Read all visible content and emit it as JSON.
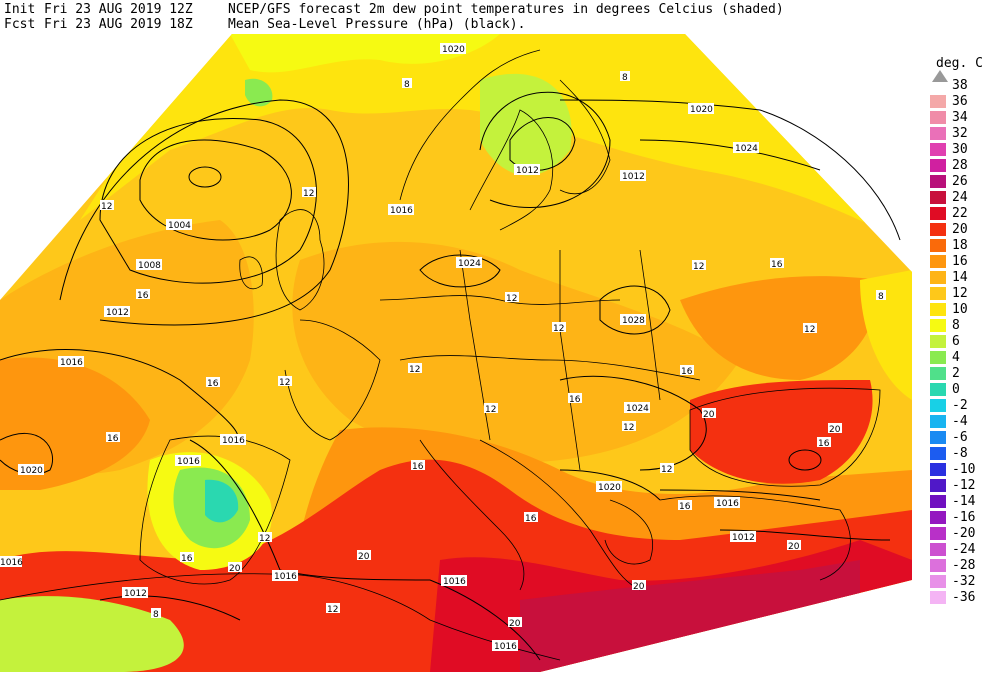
{
  "header": {
    "init_label": "Init",
    "init_time": "Fri 23 AUG 2019 12Z",
    "fcst_label": "Fcst",
    "fcst_time": "Fri 23 AUG 2019 18Z",
    "product_line1": "NCEP/GFS forecast 2m dew point temperatures in degrees Celcius (shaded)",
    "product_line2": "Mean Sea-Level Pressure (hPa) (black)."
  },
  "legend": {
    "unit": "deg. C",
    "colors": {
      "38": "#a0a0a0",
      "36": "#f4a8a8",
      "34": "#f08ca8",
      "32": "#ea70b8",
      "30": "#e040b0",
      "28": "#d020a0",
      "26": "#b8107a",
      "24": "#c8103c",
      "22": "#e00c24",
      "20": "#f43010",
      "18": "#fa6a0a",
      "16": "#fe960e",
      "14": "#feb416",
      "12": "#fec81a",
      "10": "#fee40e",
      "8": "#f6fa12",
      "6": "#c4f23c",
      "4": "#8aea50",
      "2": "#50e08a",
      "0": "#2ad8b0",
      "-2": "#18d0e6",
      "-4": "#18b4f0",
      "-6": "#1a8af2",
      "-8": "#1c5cf0",
      "-10": "#2a30e0",
      "-12": "#5018c8",
      "-14": "#7010c0",
      "-16": "#9418c0",
      "-20": "#b830c8",
      "-24": "#cc50d0",
      "-28": "#dc70dc",
      "-32": "#e890e8",
      "-36": "#f4b4f4"
    },
    "ticks": [
      "38",
      "36",
      "34",
      "32",
      "30",
      "28",
      "26",
      "24",
      "22",
      "20",
      "18",
      "16",
      "14",
      "12",
      "10",
      "8",
      "6",
      "4",
      "2",
      "0",
      "-2",
      "-4",
      "-6",
      "-8",
      "-10",
      "-12",
      "-14",
      "-16",
      "-20",
      "-24",
      "-28",
      "-32",
      "-36"
    ]
  },
  "map": {
    "background": "#ffffff",
    "coast_color": "#000000",
    "isobar_color": "#000000",
    "isobar_labels": [
      {
        "text": "1004"
      },
      {
        "text": "1008"
      },
      {
        "text": "1012"
      },
      {
        "text": "1016"
      },
      {
        "text": "1020"
      },
      {
        "text": "1012"
      },
      {
        "text": "1016"
      },
      {
        "text": "1020"
      },
      {
        "text": "1024"
      },
      {
        "text": "1028"
      },
      {
        "text": "1024"
      },
      {
        "text": "1020"
      },
      {
        "text": "1024"
      },
      {
        "text": "1016"
      },
      {
        "text": "1012"
      },
      {
        "text": "1016"
      },
      {
        "text": "1016"
      },
      {
        "text": "1020"
      },
      {
        "text": "1016"
      },
      {
        "text": "1012"
      },
      {
        "text": "1016"
      },
      {
        "text": "1016"
      },
      {
        "text": "1012"
      },
      {
        "text": "1016"
      }
    ],
    "dewpoint_labels": [
      {
        "text": "8"
      },
      {
        "text": "12"
      },
      {
        "text": "16"
      },
      {
        "text": "12"
      },
      {
        "text": "16"
      },
      {
        "text": "16"
      },
      {
        "text": "12"
      },
      {
        "text": "12"
      },
      {
        "text": "12"
      },
      {
        "text": "16"
      },
      {
        "text": "12"
      },
      {
        "text": "12"
      },
      {
        "text": "16"
      },
      {
        "text": "16"
      },
      {
        "text": "20"
      },
      {
        "text": "20"
      },
      {
        "text": "20"
      },
      {
        "text": "16"
      },
      {
        "text": "12"
      },
      {
        "text": "12"
      },
      {
        "text": "8"
      },
      {
        "text": "12"
      },
      {
        "text": "16"
      },
      {
        "text": "20"
      },
      {
        "text": "20"
      },
      {
        "text": "16"
      },
      {
        "text": "12"
      },
      {
        "text": "8"
      },
      {
        "text": "12"
      },
      {
        "text": "16"
      },
      {
        "text": "20"
      },
      {
        "text": "16"
      },
      {
        "text": "20"
      },
      {
        "text": "12"
      },
      {
        "text": "8"
      }
    ]
  }
}
